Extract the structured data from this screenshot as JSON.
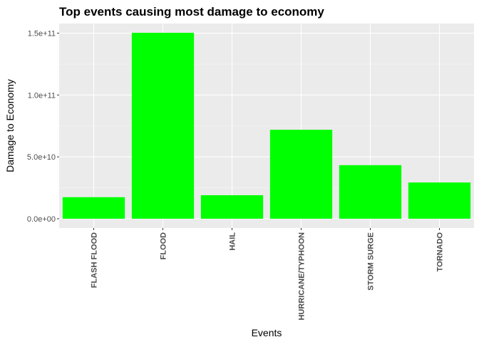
{
  "chart_data": {
    "type": "bar",
    "title": "Top events causing most damage to economy",
    "xlabel": "Events",
    "ylabel": "Damage to Economy",
    "categories": [
      "FLASH FLOOD",
      "FLOOD",
      "HAIL",
      "HURRICANE/TYPHOON",
      "STORM SURGE",
      "TORNADO"
    ],
    "values": [
      17400000000,
      150300000000,
      19000000000,
      71900000000,
      43300000000,
      29300000000
    ],
    "ylim": [
      -7500000000,
      157800000000
    ],
    "yticks": [
      0,
      50000000000,
      100000000000,
      150000000000
    ],
    "ytick_labels": [
      "0.0e+00",
      "5.0e+10",
      "1.0e+11",
      "1.5e+11"
    ],
    "grid": true,
    "legend": "none",
    "colors": {
      "bar": "#00ff00",
      "panel": "#ebebeb",
      "grid_major": "#ffffff",
      "grid_minor": "#f5f5f5"
    }
  }
}
